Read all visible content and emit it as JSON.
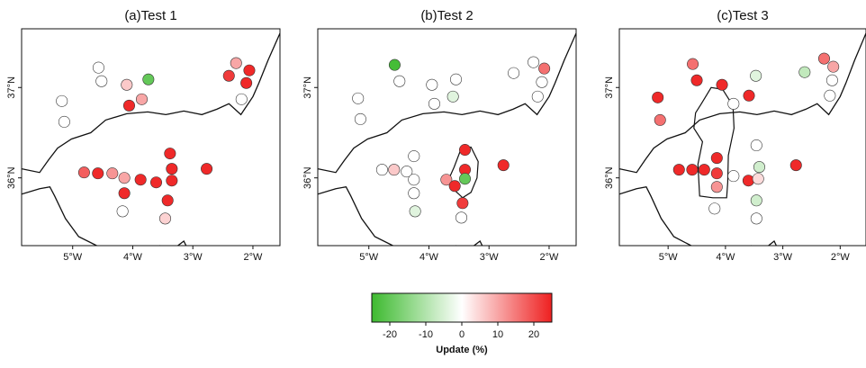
{
  "chart_data": [
    {
      "type": "scatter",
      "title": "(a)Test 1",
      "xticks": [
        "5°W",
        "4°W",
        "3°W",
        "2°W"
      ],
      "yticks": [
        "36°N",
        "37°N"
      ],
      "xlim": [
        -5.85,
        -1.55
      ],
      "ylim": [
        35.25,
        37.65
      ],
      "points": [
        {
          "x": -4.57,
          "y": 37.22,
          "v": 0
        },
        {
          "x": -4.52,
          "y": 37.07,
          "v": 0
        },
        {
          "x": -4.1,
          "y": 37.03,
          "v": 6
        },
        {
          "x": -3.74,
          "y": 37.09,
          "v": -20
        },
        {
          "x": -2.4,
          "y": 37.13,
          "v": 22
        },
        {
          "x": -2.28,
          "y": 37.27,
          "v": 10
        },
        {
          "x": -2.06,
          "y": 37.19,
          "v": 24
        },
        {
          "x": -2.11,
          "y": 37.05,
          "v": 24
        },
        {
          "x": -5.18,
          "y": 36.85,
          "v": 0
        },
        {
          "x": -5.14,
          "y": 36.62,
          "v": 0
        },
        {
          "x": -4.06,
          "y": 36.8,
          "v": 24
        },
        {
          "x": -3.85,
          "y": 36.87,
          "v": 10
        },
        {
          "x": -2.19,
          "y": 36.87,
          "v": 0
        },
        {
          "x": -3.38,
          "y": 36.27,
          "v": 24
        },
        {
          "x": -4.81,
          "y": 36.06,
          "v": 18
        },
        {
          "x": -4.58,
          "y": 36.05,
          "v": 24
        },
        {
          "x": -4.34,
          "y": 36.05,
          "v": 12
        },
        {
          "x": -4.14,
          "y": 36.0,
          "v": 10
        },
        {
          "x": -3.87,
          "y": 35.98,
          "v": 24
        },
        {
          "x": -3.61,
          "y": 35.95,
          "v": 24
        },
        {
          "x": -3.35,
          "y": 36.1,
          "v": 24
        },
        {
          "x": -3.35,
          "y": 35.97,
          "v": 24
        },
        {
          "x": -2.77,
          "y": 36.1,
          "v": 24
        },
        {
          "x": -4.14,
          "y": 35.83,
          "v": 24
        },
        {
          "x": -3.42,
          "y": 35.75,
          "v": 24
        },
        {
          "x": -4.17,
          "y": 35.63,
          "v": 0
        },
        {
          "x": -3.46,
          "y": 35.55,
          "v": 5
        }
      ]
    },
    {
      "type": "scatter",
      "title": "(b)Test 2",
      "xticks": [
        "5°W",
        "4°W",
        "3°W",
        "2°W"
      ],
      "yticks": [
        "36°N",
        "37°N"
      ],
      "xlim": [
        -5.85,
        -1.55
      ],
      "ylim": [
        35.25,
        37.65
      ],
      "points": [
        {
          "x": -4.57,
          "y": 37.25,
          "v": -24
        },
        {
          "x": -4.49,
          "y": 37.07,
          "v": 0
        },
        {
          "x": -3.95,
          "y": 37.03,
          "v": 0
        },
        {
          "x": -3.55,
          "y": 37.09,
          "v": 0
        },
        {
          "x": -2.59,
          "y": 37.16,
          "v": 0
        },
        {
          "x": -2.26,
          "y": 37.28,
          "v": 0
        },
        {
          "x": -2.08,
          "y": 37.21,
          "v": 16
        },
        {
          "x": -2.12,
          "y": 37.06,
          "v": 0
        },
        {
          "x": -5.18,
          "y": 36.88,
          "v": 0
        },
        {
          "x": -5.14,
          "y": 36.65,
          "v": 0
        },
        {
          "x": -3.91,
          "y": 36.82,
          "v": 0
        },
        {
          "x": -3.6,
          "y": 36.9,
          "v": -4
        },
        {
          "x": -2.19,
          "y": 36.9,
          "v": 0
        },
        {
          "x": -4.25,
          "y": 36.24,
          "v": 0
        },
        {
          "x": -4.78,
          "y": 36.09,
          "v": 0
        },
        {
          "x": -4.58,
          "y": 36.09,
          "v": 6
        },
        {
          "x": -4.37,
          "y": 36.07,
          "v": 0
        },
        {
          "x": -4.25,
          "y": 35.98,
          "v": 0
        },
        {
          "x": -3.71,
          "y": 35.98,
          "v": 12
        },
        {
          "x": -3.4,
          "y": 36.31,
          "v": 24
        },
        {
          "x": -3.4,
          "y": 36.09,
          "v": 24
        },
        {
          "x": -3.4,
          "y": 35.99,
          "v": -20
        },
        {
          "x": -3.57,
          "y": 35.91,
          "v": 24
        },
        {
          "x": -3.44,
          "y": 35.72,
          "v": 22
        },
        {
          "x": -2.76,
          "y": 36.14,
          "v": 24
        },
        {
          "x": -4.25,
          "y": 35.83,
          "v": 0
        },
        {
          "x": -4.23,
          "y": 35.63,
          "v": -4
        },
        {
          "x": -3.46,
          "y": 35.56,
          "v": 0
        }
      ]
    },
    {
      "type": "scatter",
      "title": "(c)Test 3",
      "xticks": [
        "5°W",
        "4°W",
        "3°W",
        "2°W"
      ],
      "yticks": [
        "36°N",
        "37°N"
      ],
      "xlim": [
        -5.85,
        -1.55
      ],
      "ylim": [
        35.25,
        37.65
      ],
      "points": [
        {
          "x": -4.57,
          "y": 37.26,
          "v": 16
        },
        {
          "x": -4.5,
          "y": 37.08,
          "v": 24
        },
        {
          "x": -4.06,
          "y": 37.03,
          "v": 24
        },
        {
          "x": -3.47,
          "y": 37.13,
          "v": -4
        },
        {
          "x": -2.62,
          "y": 37.17,
          "v": -8
        },
        {
          "x": -2.28,
          "y": 37.32,
          "v": 16
        },
        {
          "x": -2.12,
          "y": 37.23,
          "v": 10
        },
        {
          "x": -2.14,
          "y": 37.08,
          "v": 0
        },
        {
          "x": -5.18,
          "y": 36.89,
          "v": 24
        },
        {
          "x": -5.14,
          "y": 36.64,
          "v": 16
        },
        {
          "x": -3.86,
          "y": 36.82,
          "v": 0
        },
        {
          "x": -3.59,
          "y": 36.91,
          "v": 24
        },
        {
          "x": -2.18,
          "y": 36.91,
          "v": 0
        },
        {
          "x": -3.46,
          "y": 36.36,
          "v": 0
        },
        {
          "x": -4.81,
          "y": 36.09,
          "v": 24
        },
        {
          "x": -4.58,
          "y": 36.09,
          "v": 24
        },
        {
          "x": -4.37,
          "y": 36.09,
          "v": 24
        },
        {
          "x": -4.15,
          "y": 36.22,
          "v": 24
        },
        {
          "x": -4.15,
          "y": 36.05,
          "v": 22
        },
        {
          "x": -4.15,
          "y": 35.9,
          "v": 12
        },
        {
          "x": -3.86,
          "y": 36.02,
          "v": 0
        },
        {
          "x": -3.6,
          "y": 35.97,
          "v": 24
        },
        {
          "x": -3.41,
          "y": 36.12,
          "v": -6
        },
        {
          "x": -3.43,
          "y": 35.99,
          "v": 4
        },
        {
          "x": -3.46,
          "y": 35.75,
          "v": -6
        },
        {
          "x": -2.77,
          "y": 36.14,
          "v": 24
        },
        {
          "x": -4.19,
          "y": 35.66,
          "v": 0
        },
        {
          "x": -3.46,
          "y": 35.55,
          "v": 0
        }
      ]
    }
  ],
  "colorbar": {
    "label": "Update (%)",
    "min": -25,
    "max": 25,
    "ticks": [
      -20,
      -10,
      0,
      10,
      20
    ],
    "tick_labels": [
      "-20",
      "-10",
      "0",
      "10",
      "20"
    ],
    "colors": {
      "negative": "#3dba2f",
      "zero": "#ffffff",
      "positive": "#ee2020"
    }
  }
}
